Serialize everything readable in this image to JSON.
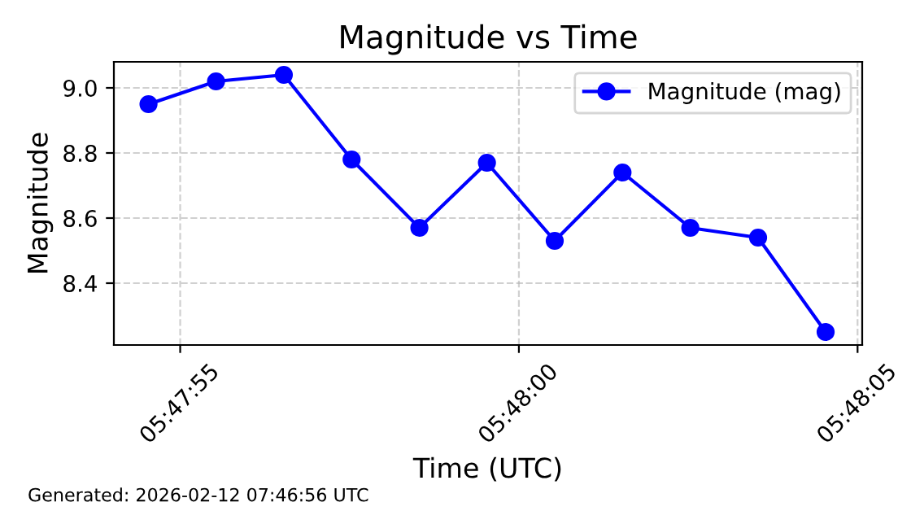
{
  "chart_data": {
    "type": "line",
    "title": "Magnitude vs Time",
    "xlabel": "Time (UTC)",
    "ylabel": "Magnitude",
    "annotations": [
      "Generated: 2026-02-12 07:46:56 UTC"
    ],
    "x": [
      5.798481,
      5.798758,
      5.799036,
      5.799314,
      5.799592,
      5.799869,
      5.800147,
      5.800425,
      5.800703,
      5.800981,
      5.801258
    ],
    "series": [
      {
        "name": "Magnitude (mag)",
        "color": "#0000ff",
        "values": [
          8.95,
          9.02,
          9.04,
          8.78,
          8.57,
          8.77,
          8.53,
          8.74,
          8.57,
          8.54,
          8.25
        ]
      }
    ],
    "xlim": [
      5.798339,
      5.801408
    ],
    "ylim": [
      8.21,
      9.08
    ],
    "xticks": [
      {
        "value": 5.798611,
        "label": "05:47:55"
      },
      {
        "value": 5.8,
        "label": "05:48:00"
      },
      {
        "value": 5.801389,
        "label": "05:48:05"
      }
    ],
    "yticks": [
      {
        "value": 8.4,
        "label": "8.4"
      },
      {
        "value": 8.6,
        "label": "8.6"
      },
      {
        "value": 8.8,
        "label": "8.8"
      },
      {
        "value": 9.0,
        "label": "9.0"
      }
    ],
    "grid": true,
    "legend": "top right",
    "marker": "circle",
    "line_style": "solid"
  }
}
